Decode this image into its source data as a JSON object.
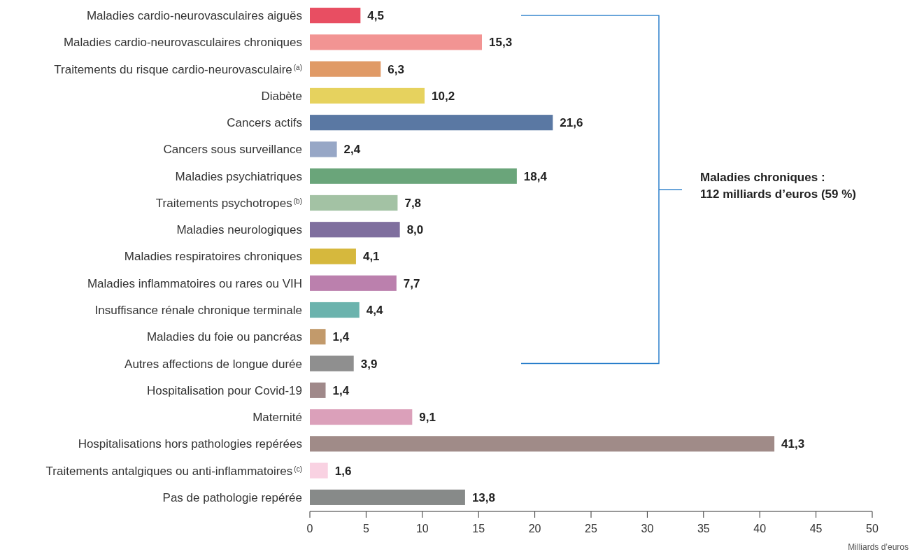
{
  "chart_data": {
    "type": "bar",
    "orientation": "horizontal",
    "categories": [
      "Maladies cardio-neurovasculaires aiguës",
      "Maladies cardio-neurovasculaires chroniques",
      "Traitements du risque cardio-neurovasculaire$^{(a)}$",
      "Diabète",
      "Cancers actifs",
      "Cancers sous surveillance",
      "Maladies psychiatriques",
      "Traitements psychotropes$^{(b)}$",
      "Maladies neurologiques",
      "Maladies respiratoires chroniques",
      "Maladies inflammatoires ou rares ou VIH",
      "Insuffisance rénale chronique terminale",
      "Maladies du foie ou pancréas",
      "Autres affections de longue durée",
      "Hospitalisation pour Covid-19",
      "Maternité",
      "Hospitalisations hors pathologies repérées",
      "Traitements antalgiques ou anti-inflammatoires$^{(c)}$",
      "Pas de pathologie repérée"
    ],
    "values": [
      4.5,
      15.3,
      6.3,
      10.2,
      21.6,
      2.4,
      18.4,
      7.8,
      8.0,
      4.1,
      7.7,
      4.4,
      1.4,
      3.9,
      1.4,
      9.1,
      41.3,
      1.6,
      13.8
    ],
    "value_labels": [
      "4,5",
      "15,3",
      "6,3",
      "10,2",
      "21,6",
      "2,4",
      "18,4",
      "7,8",
      "8,0",
      "4,1",
      "7,7",
      "4,4",
      "1,4",
      "3,9",
      "1,4",
      "9,1",
      "41,3",
      "1,6",
      "13,8"
    ],
    "colors": [
      "#e84e62",
      "#f29493",
      "#e09a66",
      "#e6d25e",
      "#5a78a3",
      "#97a7c6",
      "#6aa57a",
      "#a3c2a4",
      "#7f6f9e",
      "#d6b83d",
      "#bb80ad",
      "#6bb3ad",
      "#c29a6b",
      "#8f8f8f",
      "#a0898a",
      "#dba0ba",
      "#a08b88",
      "#f9d2e2",
      "#878a89"
    ],
    "xlim": [
      0,
      50
    ],
    "xticks": [
      0,
      5,
      10,
      15,
      20,
      25,
      30,
      35,
      40,
      45,
      50
    ],
    "xlabel": "Milliards d’euros",
    "annotations": [
      "Maladies chroniques :\n112 milliards d’euros (59 %)"
    ],
    "grid": false
  }
}
